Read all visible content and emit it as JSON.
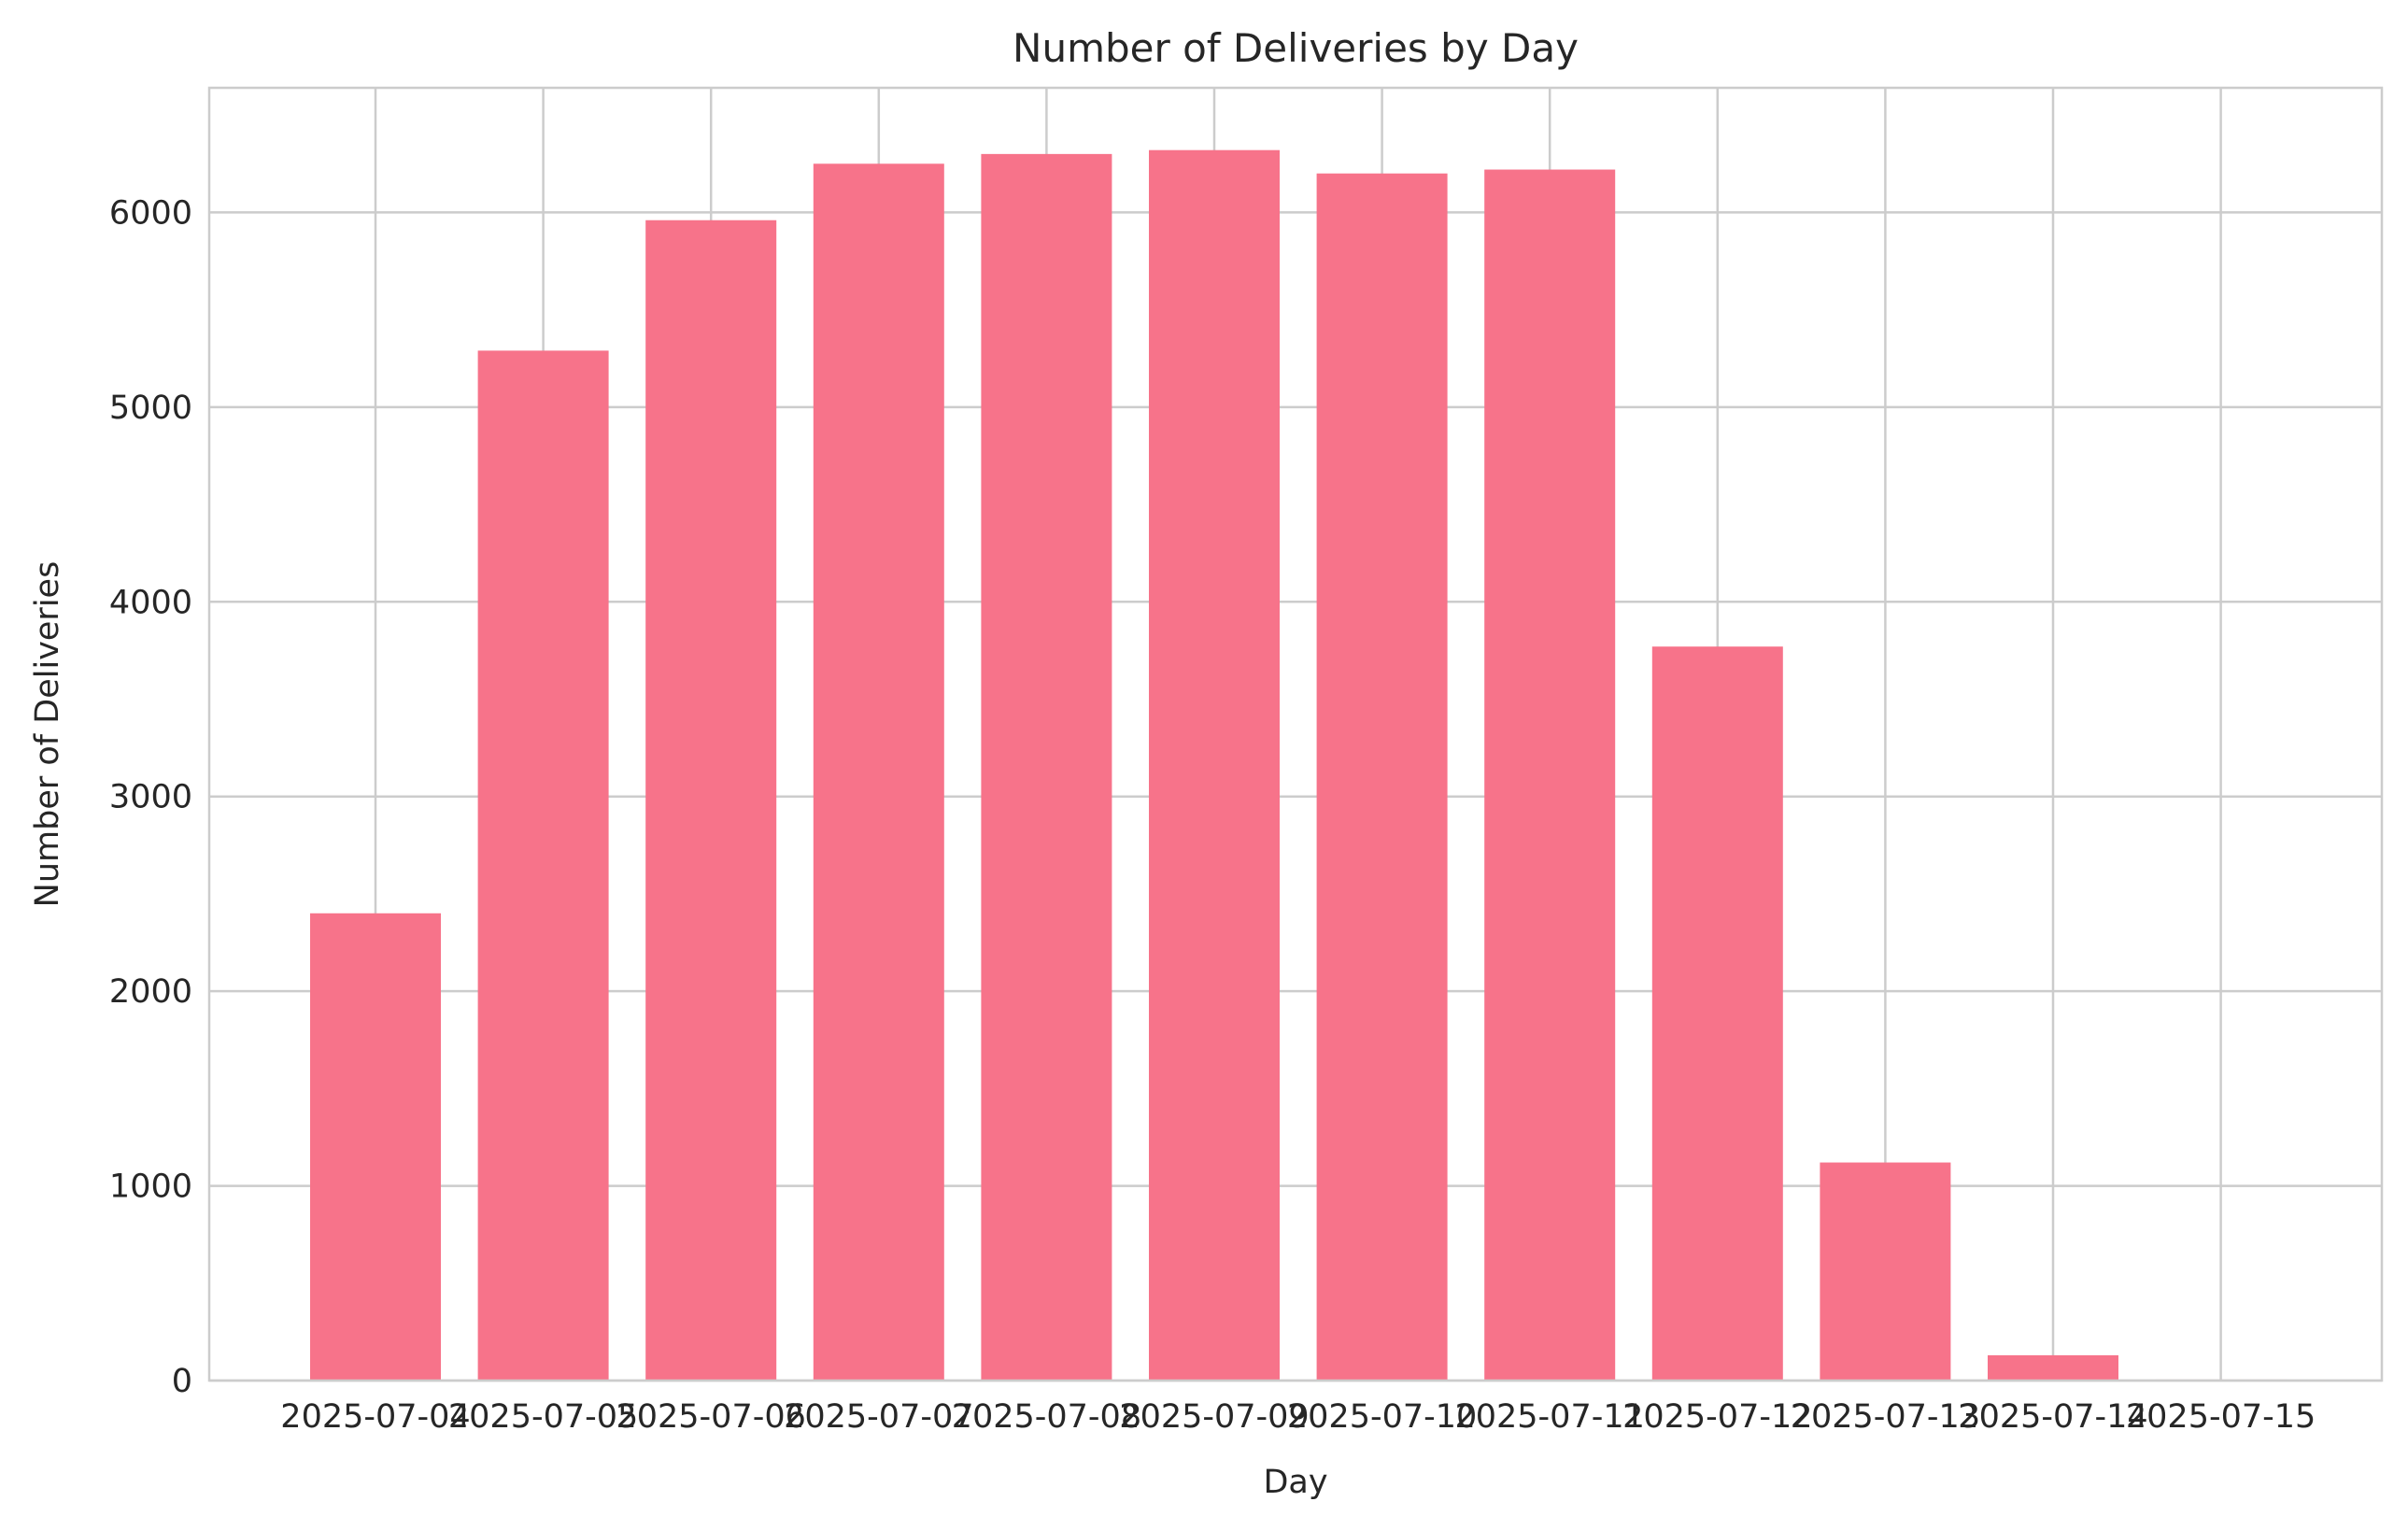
{
  "chart_data": {
    "type": "bar",
    "title": "Number of Deliveries by Day",
    "xlabel": "Day",
    "ylabel": "Number of Deliveries",
    "categories": [
      "2025-07-04",
      "2025-07-05",
      "2025-07-06",
      "2025-07-07",
      "2025-07-08",
      "2025-07-09",
      "2025-07-10",
      "2025-07-11",
      "2025-07-12",
      "2025-07-13",
      "2025-07-14",
      "2025-07-15"
    ],
    "values": [
      2400,
      5290,
      5960,
      6250,
      6300,
      6320,
      6200,
      6220,
      3770,
      1120,
      130,
      5
    ],
    "ylim": [
      0,
      6640
    ],
    "yticks": [
      0,
      1000,
      2000,
      3000,
      4000,
      5000,
      6000
    ],
    "ytick_labels": [
      "0",
      "1000",
      "2000",
      "3000",
      "4000",
      "5000",
      "6000"
    ],
    "grid": true,
    "bar_color": "#f7738a",
    "grid_color": "#cccccc"
  }
}
